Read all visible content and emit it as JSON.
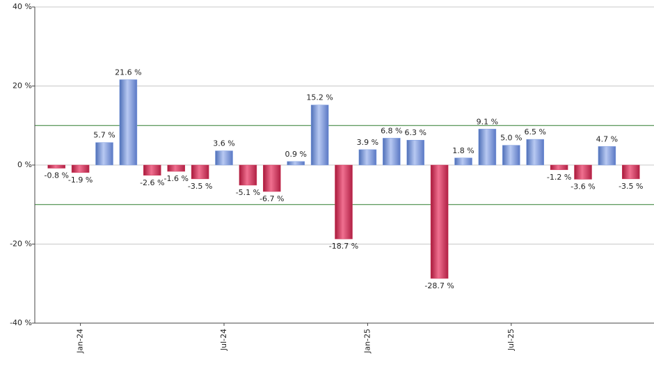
{
  "chart_data": {
    "type": "bar",
    "categories": [
      null,
      "Jan-24",
      null,
      null,
      null,
      null,
      null,
      "Jul-24",
      null,
      null,
      null,
      null,
      null,
      "Jan-25",
      null,
      null,
      null,
      null,
      null,
      "Jul-25",
      null,
      null,
      null,
      null,
      null
    ],
    "values": [
      -0.8,
      -1.9,
      5.7,
      21.6,
      -2.6,
      -1.6,
      -3.5,
      3.6,
      -5.1,
      -6.7,
      0.9,
      15.2,
      -18.7,
      3.9,
      6.8,
      6.3,
      -28.7,
      1.8,
      9.1,
      5.0,
      6.5,
      -1.2,
      -3.6,
      4.7,
      -3.5
    ],
    "value_labels": [
      "-0.8 %",
      "-1.9 %",
      "5.7 %",
      "21.6 %",
      "-2.6 %",
      "-1.6 %",
      "-3.5 %",
      "3.6 %",
      "-5.1 %",
      "-6.7 %",
      "0.9 %",
      "15.2 %",
      "-18.7 %",
      "3.9 %",
      "6.8 %",
      "6.3 %",
      "-28.7 %",
      "1.8 %",
      "9.1 %",
      "5.0 %",
      "6.5 %",
      "-1.2 %",
      "-3.6 %",
      "4.7 %",
      "-3.5 %"
    ],
    "positive_color": "#7b9be0",
    "negative_color": "#d03a5c",
    "ylim": [
      -40,
      40
    ],
    "yticks": [
      {
        "value": -40,
        "label": "-40 %"
      },
      {
        "value": -20,
        "label": "-20 %"
      },
      {
        "value": 0,
        "label": "0 %"
      },
      {
        "value": 20,
        "label": "20 %"
      },
      {
        "value": 40,
        "label": "40 %"
      }
    ],
    "reference_lines": [
      10,
      -10
    ],
    "reference_color": "#2e7d2e",
    "grid": true
  }
}
